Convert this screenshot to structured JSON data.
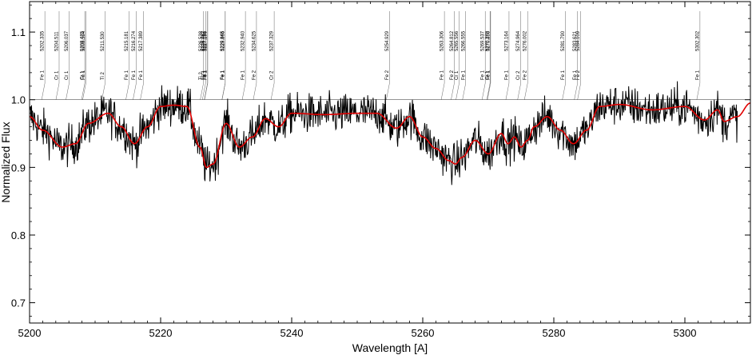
{
  "chart_data": {
    "type": "line",
    "title": "",
    "xlabel": "Wavelength [A]",
    "ylabel": "Normalized Flux",
    "xlim": [
      5200,
      5310
    ],
    "ylim": [
      0.67,
      1.145
    ],
    "x_ticks": [
      5200,
      5220,
      5240,
      5260,
      5280,
      5300
    ],
    "y_ticks": [
      0.7,
      0.8,
      0.9,
      1.0,
      1.1
    ],
    "x_tick_labels": [
      "5200",
      "5220",
      "5240",
      "5260",
      "5280",
      "5300"
    ],
    "y_tick_labels": [
      "0.7",
      "0.8",
      "0.9",
      "1.0",
      "1.1"
    ],
    "reference_level": 1.0,
    "grid": false,
    "series": [
      {
        "color": "#000000",
        "style": "observed noisy spectrum, roughly 0.86-1.06 around the model",
        "x": [
          5200,
          5205,
          5210,
          5215,
          5220,
          5225,
          5230,
          5235,
          5240,
          5245,
          5250,
          5255,
          5260,
          5265,
          5270,
          5275,
          5280,
          5285,
          5290,
          5295,
          5300,
          5305,
          5308
        ],
        "y": [
          0.97,
          0.93,
          0.95,
          0.95,
          0.99,
          0.95,
          0.94,
          0.95,
          0.98,
          0.98,
          0.98,
          0.96,
          0.95,
          0.91,
          0.93,
          0.93,
          0.96,
          0.97,
          0.99,
          0.98,
          0.97,
          0.98,
          0.98
        ]
      },
      {
        "color": "#e00000",
        "style": "smooth synthetic model",
        "x": [
          5200,
          5202,
          5205,
          5207,
          5209,
          5212,
          5214,
          5216,
          5218,
          5220,
          5222,
          5224,
          5226,
          5227,
          5228,
          5230,
          5232,
          5234,
          5236,
          5238,
          5240,
          5245,
          5250,
          5253,
          5256,
          5258,
          5260,
          5262,
          5264,
          5265,
          5266,
          5268,
          5270,
          5272,
          5273,
          5274,
          5275,
          5276,
          5277,
          5279,
          5281,
          5283,
          5285,
          5287,
          5290,
          5295,
          5300,
          5303,
          5305,
          5306,
          5308,
          5310
        ],
        "y": [
          0.975,
          0.955,
          0.93,
          0.935,
          0.965,
          0.98,
          0.96,
          0.935,
          0.96,
          0.99,
          0.992,
          0.99,
          0.93,
          0.9,
          0.905,
          0.965,
          0.93,
          0.945,
          0.972,
          0.96,
          0.98,
          0.978,
          0.98,
          0.98,
          0.958,
          0.975,
          0.945,
          0.928,
          0.91,
          0.905,
          0.915,
          0.94,
          0.92,
          0.95,
          0.935,
          0.945,
          0.93,
          0.94,
          0.96,
          0.975,
          0.955,
          0.935,
          0.955,
          0.99,
          0.993,
          0.985,
          0.99,
          0.97,
          0.985,
          0.968,
          0.975,
          0.995
        ]
      }
    ],
    "line_ids": [
      {
        "wl": "5202.335",
        "el": "Fe 1"
      },
      {
        "wl": "5204.511",
        "el": "Cr 1"
      },
      {
        "wl": "5206.037",
        "el": "Cr 1"
      },
      {
        "wl": "5208.425",
        "el": "Cr 1"
      },
      {
        "wl": "5208.594",
        "el": "Fe 1"
      },
      {
        "wl": "5211.530",
        "el": "Ti 2"
      },
      {
        "wl": "5215.181",
        "el": "Fe 1"
      },
      {
        "wl": "5216.274",
        "el": "Fe 1"
      },
      {
        "wl": "5217.389",
        "el": "Fe 1"
      },
      {
        "wl": "5226.538",
        "el": "Ti 2"
      },
      {
        "wl": "5226.862",
        "el": "Fe 1"
      },
      {
        "wl": "5227.151",
        "el": "Fe 1"
      },
      {
        "wl": "5227.190",
        "el": "Fe 1"
      },
      {
        "wl": "5229.845",
        "el": "Fe 1"
      },
      {
        "wl": "5229.866",
        "el": "Fe 1"
      },
      {
        "wl": "5232.940",
        "el": "Fe 1"
      },
      {
        "wl": "5234.625",
        "el": "Fe 2"
      },
      {
        "wl": "5237.329",
        "el": "Cr 2"
      },
      {
        "wl": "5254.929",
        "el": "Fe 2"
      },
      {
        "wl": "5263.306",
        "el": "Fe 1"
      },
      {
        "wl": "5264.812",
        "el": "Fe 2"
      },
      {
        "wl": "5265.556",
        "el": "Cr 1"
      },
      {
        "wl": "5266.555",
        "el": "Fe 1"
      },
      {
        "wl": "5269.537",
        "el": "Fe 1"
      },
      {
        "wl": "5270.270",
        "el": "Cr 1"
      },
      {
        "wl": "5270.356",
        "el": "Fe 1"
      },
      {
        "wl": "5273.164",
        "el": "Fe 1"
      },
      {
        "wl": "5274.964",
        "el": "Cr 2"
      },
      {
        "wl": "5276.002",
        "el": "Fe 2"
      },
      {
        "wl": "5281.790",
        "el": "Fe 1"
      },
      {
        "wl": "5283.621",
        "el": "Fe 1"
      },
      {
        "wl": "5284.109",
        "el": "Fe 2"
      },
      {
        "wl": "5302.302",
        "el": "Fe 1"
      }
    ]
  }
}
